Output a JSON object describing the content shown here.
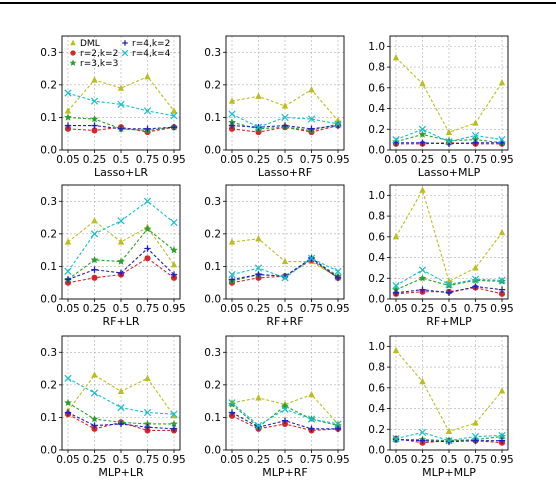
{
  "chart_data": [
    {
      "type": "line",
      "title": "Lasso+LR",
      "categories": [
        "0.05",
        "0.25",
        "0.5",
        "0.75",
        "0.95"
      ],
      "ylim": [
        0,
        0.35
      ],
      "yticks": [
        "0.0",
        "0.1",
        "0.2",
        "0.3"
      ],
      "legend": "top-left",
      "series": [
        {
          "name": "DML",
          "color": "#bcbd22",
          "marker": "triangle",
          "values": [
            0.12,
            0.215,
            0.19,
            0.225,
            0.12
          ]
        },
        {
          "name": "r=2,k=2",
          "color": "#d62728",
          "marker": "circle",
          "values": [
            0.065,
            0.06,
            0.07,
            0.055,
            0.07
          ]
        },
        {
          "name": "r=3,k=3",
          "color": "#2ca02c",
          "marker": "star",
          "values": [
            0.1,
            0.095,
            0.065,
            0.06,
            0.07
          ]
        },
        {
          "name": "r=4,k=2",
          "color": "#1f1fbf",
          "marker": "plus",
          "values": [
            0.075,
            0.075,
            0.065,
            0.065,
            0.07
          ]
        },
        {
          "name": "r=4,k=4",
          "color": "#17becf",
          "marker": "x",
          "values": [
            0.175,
            0.15,
            0.14,
            0.12,
            0.105
          ]
        }
      ]
    },
    {
      "type": "line",
      "title": "Lasso+RF",
      "categories": [
        "0.05",
        "0.25",
        "0.5",
        "0.75",
        "0.95"
      ],
      "ylim": [
        0,
        0.35
      ],
      "yticks": [
        "0.0",
        "0.1",
        "0.2",
        "0.3"
      ],
      "series": [
        {
          "name": "DML",
          "color": "#bcbd22",
          "marker": "triangle",
          "values": [
            0.15,
            0.165,
            0.135,
            0.185,
            0.09
          ]
        },
        {
          "name": "r=2,k=2",
          "color": "#d62728",
          "marker": "circle",
          "values": [
            0.065,
            0.055,
            0.07,
            0.055,
            0.075
          ]
        },
        {
          "name": "r=3,k=3",
          "color": "#2ca02c",
          "marker": "star",
          "values": [
            0.085,
            0.065,
            0.07,
            0.06,
            0.08
          ]
        },
        {
          "name": "r=4,k=2",
          "color": "#1f1fbf",
          "marker": "plus",
          "values": [
            0.075,
            0.07,
            0.075,
            0.065,
            0.075
          ]
        },
        {
          "name": "r=4,k=4",
          "color": "#17becf",
          "marker": "x",
          "values": [
            0.11,
            0.07,
            0.1,
            0.095,
            0.08
          ]
        }
      ]
    },
    {
      "type": "line",
      "title": "Lasso+MLP",
      "categories": [
        "0.05",
        "0.25",
        "0.5",
        "0.75",
        "0.95"
      ],
      "ylim": [
        0,
        1.1
      ],
      "yticks": [
        "0.0",
        "0.2",
        "0.4",
        "0.6",
        "0.8",
        "1.0"
      ],
      "series": [
        {
          "name": "DML",
          "color": "#bcbd22",
          "marker": "triangle",
          "values": [
            0.89,
            0.64,
            0.17,
            0.26,
            0.65
          ]
        },
        {
          "name": "r=2,k=2",
          "color": "#d62728",
          "marker": "circle",
          "values": [
            0.06,
            0.06,
            0.07,
            0.06,
            0.06
          ]
        },
        {
          "name": "r=3,k=3",
          "color": "#2ca02c",
          "marker": "star",
          "values": [
            0.08,
            0.15,
            0.09,
            0.1,
            0.07
          ]
        },
        {
          "name": "r=4,k=2",
          "color": "#1f1fbf",
          "marker": "plus",
          "values": [
            0.07,
            0.07,
            0.06,
            0.07,
            0.07
          ]
        },
        {
          "name": "r=4,k=4",
          "color": "#17becf",
          "marker": "x",
          "values": [
            0.1,
            0.2,
            0.08,
            0.14,
            0.1
          ]
        }
      ]
    },
    {
      "type": "line",
      "title": "RF+LR",
      "categories": [
        "0.05",
        "0.25",
        "0.5",
        "0.75",
        "0.95"
      ],
      "ylim": [
        0,
        0.35
      ],
      "yticks": [
        "0.0",
        "0.1",
        "0.2",
        "0.3"
      ],
      "series": [
        {
          "name": "DML",
          "color": "#bcbd22",
          "marker": "triangle",
          "values": [
            0.175,
            0.24,
            0.175,
            0.22,
            0.105
          ]
        },
        {
          "name": "r=2,k=2",
          "color": "#d62728",
          "marker": "circle",
          "values": [
            0.05,
            0.065,
            0.075,
            0.125,
            0.065
          ]
        },
        {
          "name": "r=3,k=3",
          "color": "#2ca02c",
          "marker": "star",
          "values": [
            0.06,
            0.12,
            0.115,
            0.215,
            0.15
          ]
        },
        {
          "name": "r=4,k=2",
          "color": "#1f1fbf",
          "marker": "plus",
          "values": [
            0.06,
            0.09,
            0.08,
            0.155,
            0.075
          ]
        },
        {
          "name": "r=4,k=4",
          "color": "#17becf",
          "marker": "x",
          "values": [
            0.085,
            0.2,
            0.24,
            0.3,
            0.235
          ]
        }
      ]
    },
    {
      "type": "line",
      "title": "RF+RF",
      "categories": [
        "0.05",
        "0.25",
        "0.5",
        "0.75",
        "0.95"
      ],
      "ylim": [
        0,
        0.35
      ],
      "yticks": [
        "0.0",
        "0.1",
        "0.2",
        "0.3"
      ],
      "series": [
        {
          "name": "DML",
          "color": "#bcbd22",
          "marker": "triangle",
          "values": [
            0.175,
            0.185,
            0.115,
            0.115,
            0.065
          ]
        },
        {
          "name": "r=2,k=2",
          "color": "#d62728",
          "marker": "circle",
          "values": [
            0.05,
            0.065,
            0.07,
            0.12,
            0.065
          ]
        },
        {
          "name": "r=3,k=3",
          "color": "#2ca02c",
          "marker": "star",
          "values": [
            0.055,
            0.075,
            0.07,
            0.125,
            0.07
          ]
        },
        {
          "name": "r=4,k=2",
          "color": "#1f1fbf",
          "marker": "plus",
          "values": [
            0.06,
            0.075,
            0.07,
            0.125,
            0.065
          ]
        },
        {
          "name": "r=4,k=4",
          "color": "#17becf",
          "marker": "x",
          "values": [
            0.075,
            0.095,
            0.065,
            0.125,
            0.085
          ]
        }
      ]
    },
    {
      "type": "line",
      "title": "RF+MLP",
      "categories": [
        "0.05",
        "0.25",
        "0.5",
        "0.75",
        "0.95"
      ],
      "ylim": [
        0,
        1.1
      ],
      "yticks": [
        "0.0",
        "0.2",
        "0.4",
        "0.6",
        "0.8",
        "1.0"
      ],
      "series": [
        {
          "name": "DML",
          "color": "#bcbd22",
          "marker": "triangle",
          "values": [
            0.6,
            1.05,
            0.17,
            0.3,
            0.64
          ]
        },
        {
          "name": "r=2,k=2",
          "color": "#d62728",
          "marker": "circle",
          "values": [
            0.05,
            0.07,
            0.07,
            0.11,
            0.05
          ]
        },
        {
          "name": "r=3,k=3",
          "color": "#2ca02c",
          "marker": "star",
          "values": [
            0.09,
            0.2,
            0.13,
            0.18,
            0.17
          ]
        },
        {
          "name": "r=4,k=2",
          "color": "#1f1fbf",
          "marker": "plus",
          "values": [
            0.06,
            0.09,
            0.06,
            0.12,
            0.09
          ]
        },
        {
          "name": "r=4,k=4",
          "color": "#17becf",
          "marker": "x",
          "values": [
            0.13,
            0.28,
            0.14,
            0.19,
            0.18
          ]
        }
      ]
    },
    {
      "type": "line",
      "title": "MLP+LR",
      "categories": [
        "0.05",
        "0.25",
        "0.5",
        "0.75",
        "0.95"
      ],
      "ylim": [
        0,
        0.35
      ],
      "yticks": [
        "0.0",
        "0.1",
        "0.2",
        "0.3"
      ],
      "series": [
        {
          "name": "DML",
          "color": "#bcbd22",
          "marker": "triangle",
          "values": [
            0.12,
            0.23,
            0.18,
            0.22,
            0.105
          ]
        },
        {
          "name": "r=2,k=2",
          "color": "#d62728",
          "marker": "circle",
          "values": [
            0.11,
            0.065,
            0.085,
            0.06,
            0.06
          ]
        },
        {
          "name": "r=3,k=3",
          "color": "#2ca02c",
          "marker": "star",
          "values": [
            0.145,
            0.095,
            0.085,
            0.08,
            0.08
          ]
        },
        {
          "name": "r=4,k=2",
          "color": "#1f1fbf",
          "marker": "plus",
          "values": [
            0.115,
            0.075,
            0.08,
            0.07,
            0.065
          ]
        },
        {
          "name": "r=4,k=4",
          "color": "#17becf",
          "marker": "x",
          "values": [
            0.22,
            0.175,
            0.13,
            0.115,
            0.11
          ]
        }
      ]
    },
    {
      "type": "line",
      "title": "MLP+RF",
      "categories": [
        "0.05",
        "0.25",
        "0.5",
        "0.75",
        "0.95"
      ],
      "ylim": [
        0,
        0.35
      ],
      "yticks": [
        "0.0",
        "0.1",
        "0.2",
        "0.3"
      ],
      "series": [
        {
          "name": "DML",
          "color": "#bcbd22",
          "marker": "triangle",
          "values": [
            0.145,
            0.16,
            0.14,
            0.17,
            0.08
          ]
        },
        {
          "name": "r=2,k=2",
          "color": "#d62728",
          "marker": "circle",
          "values": [
            0.105,
            0.065,
            0.08,
            0.06,
            0.065
          ]
        },
        {
          "name": "r=3,k=3",
          "color": "#2ca02c",
          "marker": "star",
          "values": [
            0.14,
            0.07,
            0.135,
            0.095,
            0.075
          ]
        },
        {
          "name": "r=4,k=2",
          "color": "#1f1fbf",
          "marker": "plus",
          "values": [
            0.115,
            0.07,
            0.09,
            0.065,
            0.065
          ]
        },
        {
          "name": "r=4,k=4",
          "color": "#17becf",
          "marker": "x",
          "values": [
            0.145,
            0.075,
            0.125,
            0.095,
            0.08
          ]
        }
      ]
    },
    {
      "type": "line",
      "title": "MLP+MLP",
      "categories": [
        "0.05",
        "0.25",
        "0.5",
        "0.75",
        "0.95"
      ],
      "ylim": [
        0,
        1.1
      ],
      "yticks": [
        "0.0",
        "0.2",
        "0.4",
        "0.6",
        "0.8",
        "1.0"
      ],
      "series": [
        {
          "name": "DML",
          "color": "#bcbd22",
          "marker": "triangle",
          "values": [
            0.96,
            0.66,
            0.18,
            0.26,
            0.57
          ]
        },
        {
          "name": "r=2,k=2",
          "color": "#d62728",
          "marker": "circle",
          "values": [
            0.11,
            0.07,
            0.09,
            0.09,
            0.07
          ]
        },
        {
          "name": "r=3,k=3",
          "color": "#2ca02c",
          "marker": "star",
          "values": [
            0.1,
            0.1,
            0.09,
            0.1,
            0.13
          ]
        },
        {
          "name": "r=4,k=2",
          "color": "#1f1fbf",
          "marker": "plus",
          "values": [
            0.1,
            0.09,
            0.08,
            0.09,
            0.09
          ]
        },
        {
          "name": "r=4,k=4",
          "color": "#17becf",
          "marker": "x",
          "values": [
            0.11,
            0.17,
            0.09,
            0.13,
            0.14
          ]
        }
      ]
    }
  ]
}
